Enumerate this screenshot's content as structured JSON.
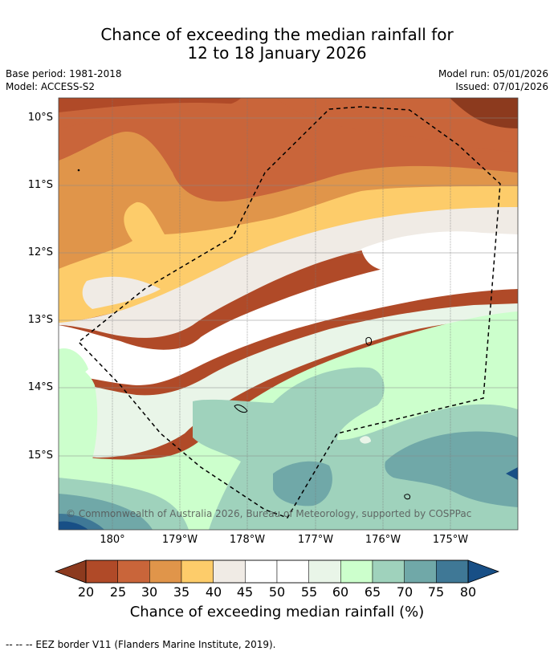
{
  "title_line1": "Chance of exceeding the median rainfall for",
  "title_line2": "12 to 18 January 2026",
  "base_period": "Base period: 1981-2018",
  "model": "Model: ACCESS-S2",
  "model_run": "Model run: 05/01/2026",
  "issued": "Issued: 07/01/2026",
  "lat_labels": [
    "10°S",
    "11°S",
    "12°S",
    "13°S",
    "14°S",
    "15°S"
  ],
  "lon_labels": [
    "180°",
    "179°W",
    "178°W",
    "177°W",
    "176°W",
    "175°W"
  ],
  "copyright": "© Commonwealth of Australia 2026, Bureau of Meteorology, supported by COSPPac",
  "colorbar": {
    "ticks": [
      "20",
      "25",
      "30",
      "35",
      "40",
      "45",
      "50",
      "55",
      "60",
      "65",
      "70",
      "75",
      "80"
    ],
    "colors": [
      "#b04a28",
      "#c9653a",
      "#e0954a",
      "#fdcc6a",
      "#f0ebe5",
      "#ffffff",
      "#ffffff",
      "#e9f5e8",
      "#ccffcc",
      "#9fd2bc",
      "#70a8a8",
      "#3f7896"
    ],
    "under_color": "#8c3a1e",
    "over_color": "#184f86",
    "label": "Chance of exceeding median rainfall (%)"
  },
  "eez_legend": "--  --  -- EEZ border V11 (Flanders Marine Institute, 2019)."
}
